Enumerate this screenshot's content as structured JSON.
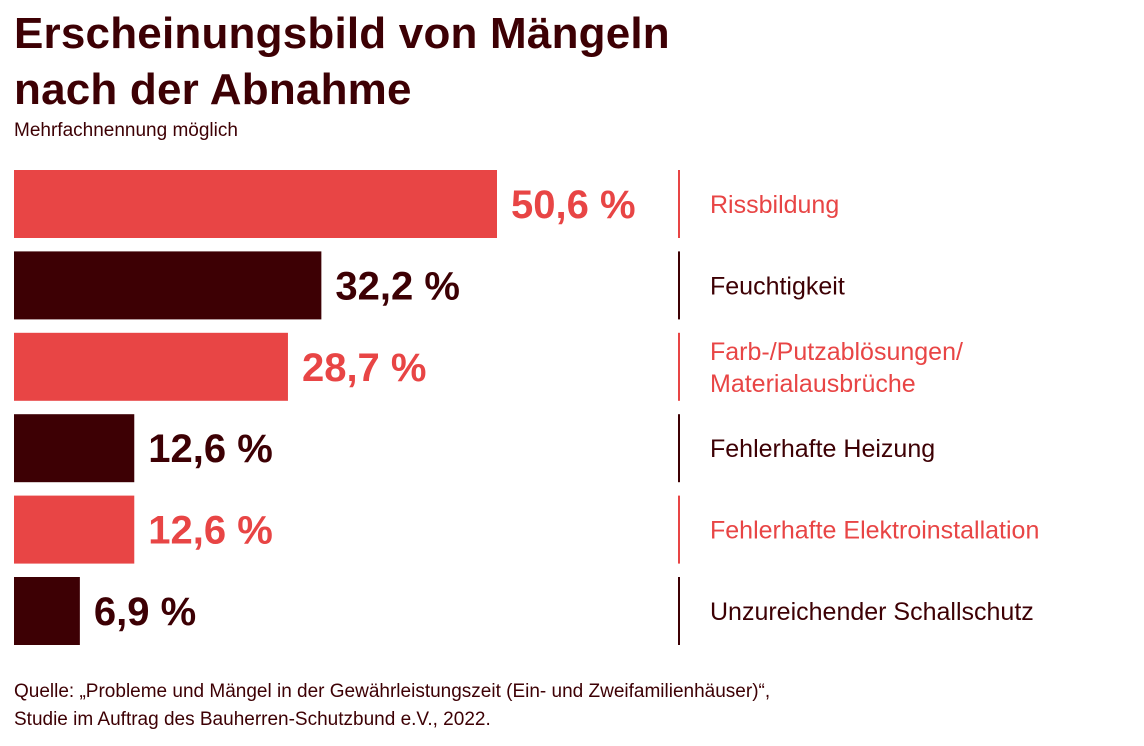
{
  "header": {
    "title_line1": "Erscheinungsbild von Mängeln",
    "title_line2": "nach der Abnahme",
    "subtitle": "Mehrfachnennung möglich"
  },
  "footer": {
    "source_line1": "Quelle: „Probleme und Mängel in der Gewährleistungszeit (Ein- und Zweifamilienhäuser)“,",
    "source_line2": "Studie im Auftrag des Bauherren-Schutzbund e.V., 2022."
  },
  "colors": {
    "red": "#e84545",
    "dark": "#3d0004"
  },
  "chart_data": {
    "type": "bar",
    "orientation": "horizontal",
    "title": "Erscheinungsbild von Mängeln nach der Abnahme",
    "subtitle": "Mehrfachnennung möglich",
    "unit": "%",
    "categories": [
      "Rissbildung",
      "Feuchtigkeit",
      "Farb-/Putzablösungen/ Materialausbrüche",
      "Fehlerhafte Heizung",
      "Fehlerhafte Elektroinstallation",
      "Unzureichender Schallschutz"
    ],
    "category_lines": [
      [
        "Rissbildung"
      ],
      [
        "Feuchtigkeit"
      ],
      [
        "Farb-/Putzablösungen/",
        "Materialausbrüche"
      ],
      [
        "Fehlerhafte Heizung"
      ],
      [
        "Fehlerhafte Elektroinstallation"
      ],
      [
        "Unzureichender Schallschutz"
      ]
    ],
    "values": [
      50.6,
      32.2,
      28.7,
      12.6,
      12.6,
      6.9
    ],
    "value_labels": [
      "50,6 %",
      "32,2 %",
      "28,7 %",
      "12,6 %",
      "12,6 %",
      "6,9 %"
    ],
    "bar_colors": [
      "#e84545",
      "#3d0004",
      "#e84545",
      "#3d0004",
      "#e84545",
      "#3d0004"
    ],
    "xlim": [
      0,
      50.6
    ],
    "grid": false,
    "legend": "none"
  }
}
